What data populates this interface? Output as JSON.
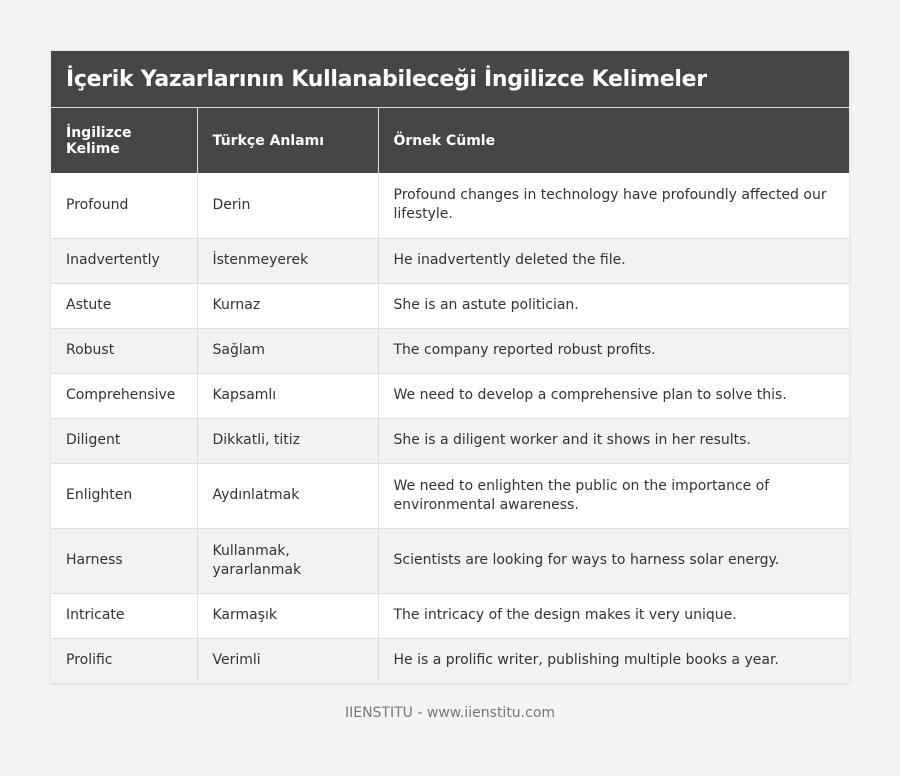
{
  "title": "İçerik Yazarlarının Kullanabileceği İngilizce Kelimeler",
  "headers": [
    "İngilizce Kelime",
    "Türkçe Anlamı",
    "Örnek Cümle"
  ],
  "rows": [
    [
      "Profound",
      "Derin",
      "Profound changes in technology have profoundly affected our lifestyle."
    ],
    [
      "Inadvertently",
      "İstenmeyerek",
      "He inadvertently deleted the file."
    ],
    [
      "Astute",
      "Kurnaz",
      "She is an astute politician."
    ],
    [
      "Robust",
      "Sağlam",
      "The company reported robust profits."
    ],
    [
      "Comprehensive",
      "Kapsamlı",
      "We need to develop a comprehensive plan to solve this."
    ],
    [
      "Diligent",
      "Dikkatli, titiz",
      "She is a diligent worker and it shows in her results."
    ],
    [
      "Enlighten",
      "Aydınlatmak",
      "We need to enlighten the public on the importance of environmental awareness."
    ],
    [
      "Harness",
      "Kullanmak, yararlanmak",
      "Scientists are looking for ways to harness solar energy."
    ],
    [
      "Intricate",
      "Karmaşık",
      "The intricacy of the design makes it very unique."
    ],
    [
      "Prolific",
      "Verimli",
      "He is a prolific writer, publishing multiple books a year."
    ]
  ],
  "footer": "IIENSTITU - www.iienstitu.com"
}
